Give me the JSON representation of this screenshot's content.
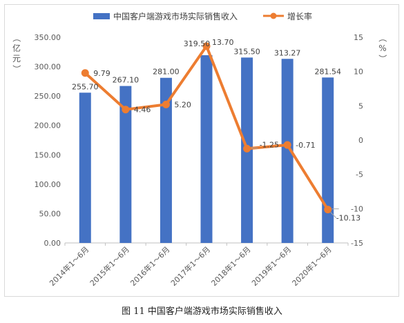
{
  "caption": "图 11 中国客户端游戏市场实际销售收入",
  "colors": {
    "bar": "#4472c4",
    "line": "#ed7d31",
    "axis": "#bfbfbf",
    "text": "#595959"
  },
  "chart_data": {
    "type": "bar+line",
    "title": "",
    "categories": [
      "2014年1～6月",
      "2015年1～6月",
      "2016年1～6月",
      "2017年1～6月",
      "2018年1～6月",
      "2019年1～6月",
      "2020年1～6月"
    ],
    "series": [
      {
        "name": "中国客户端游戏市场实际销售收入",
        "type": "bar",
        "axis": "left",
        "values": [
          255.7,
          267.1,
          281.0,
          319.5,
          315.5,
          313.27,
          281.54
        ],
        "labels": [
          "255.70",
          "267.10",
          "281.00",
          "319.50",
          "315.50",
          "313.27",
          "281.54"
        ]
      },
      {
        "name": "增长率",
        "type": "line",
        "axis": "right",
        "values": [
          9.79,
          4.46,
          5.2,
          13.7,
          -1.25,
          -0.71,
          -10.13
        ],
        "labels": [
          "9.79",
          "4.46",
          "5.20",
          "13.70",
          "-1.25",
          "-0.71",
          "-10.13"
        ]
      }
    ],
    "y_left": {
      "label": "（亿元）",
      "ylim": [
        0,
        350
      ],
      "ticks": [
        "0.00",
        "50.00",
        "100.00",
        "150.00",
        "200.00",
        "250.00",
        "300.00",
        "350.00"
      ],
      "tick_values": [
        0,
        50,
        100,
        150,
        200,
        250,
        300,
        350
      ]
    },
    "y_right": {
      "label": "（%）",
      "ylim": [
        -15,
        15
      ],
      "ticks": [
        "-15",
        "-10",
        "-5",
        "0",
        "5",
        "10",
        "15"
      ],
      "tick_values": [
        -15,
        -10,
        -5,
        0,
        5,
        10,
        15
      ]
    },
    "grid": false,
    "legend": "top-center"
  }
}
